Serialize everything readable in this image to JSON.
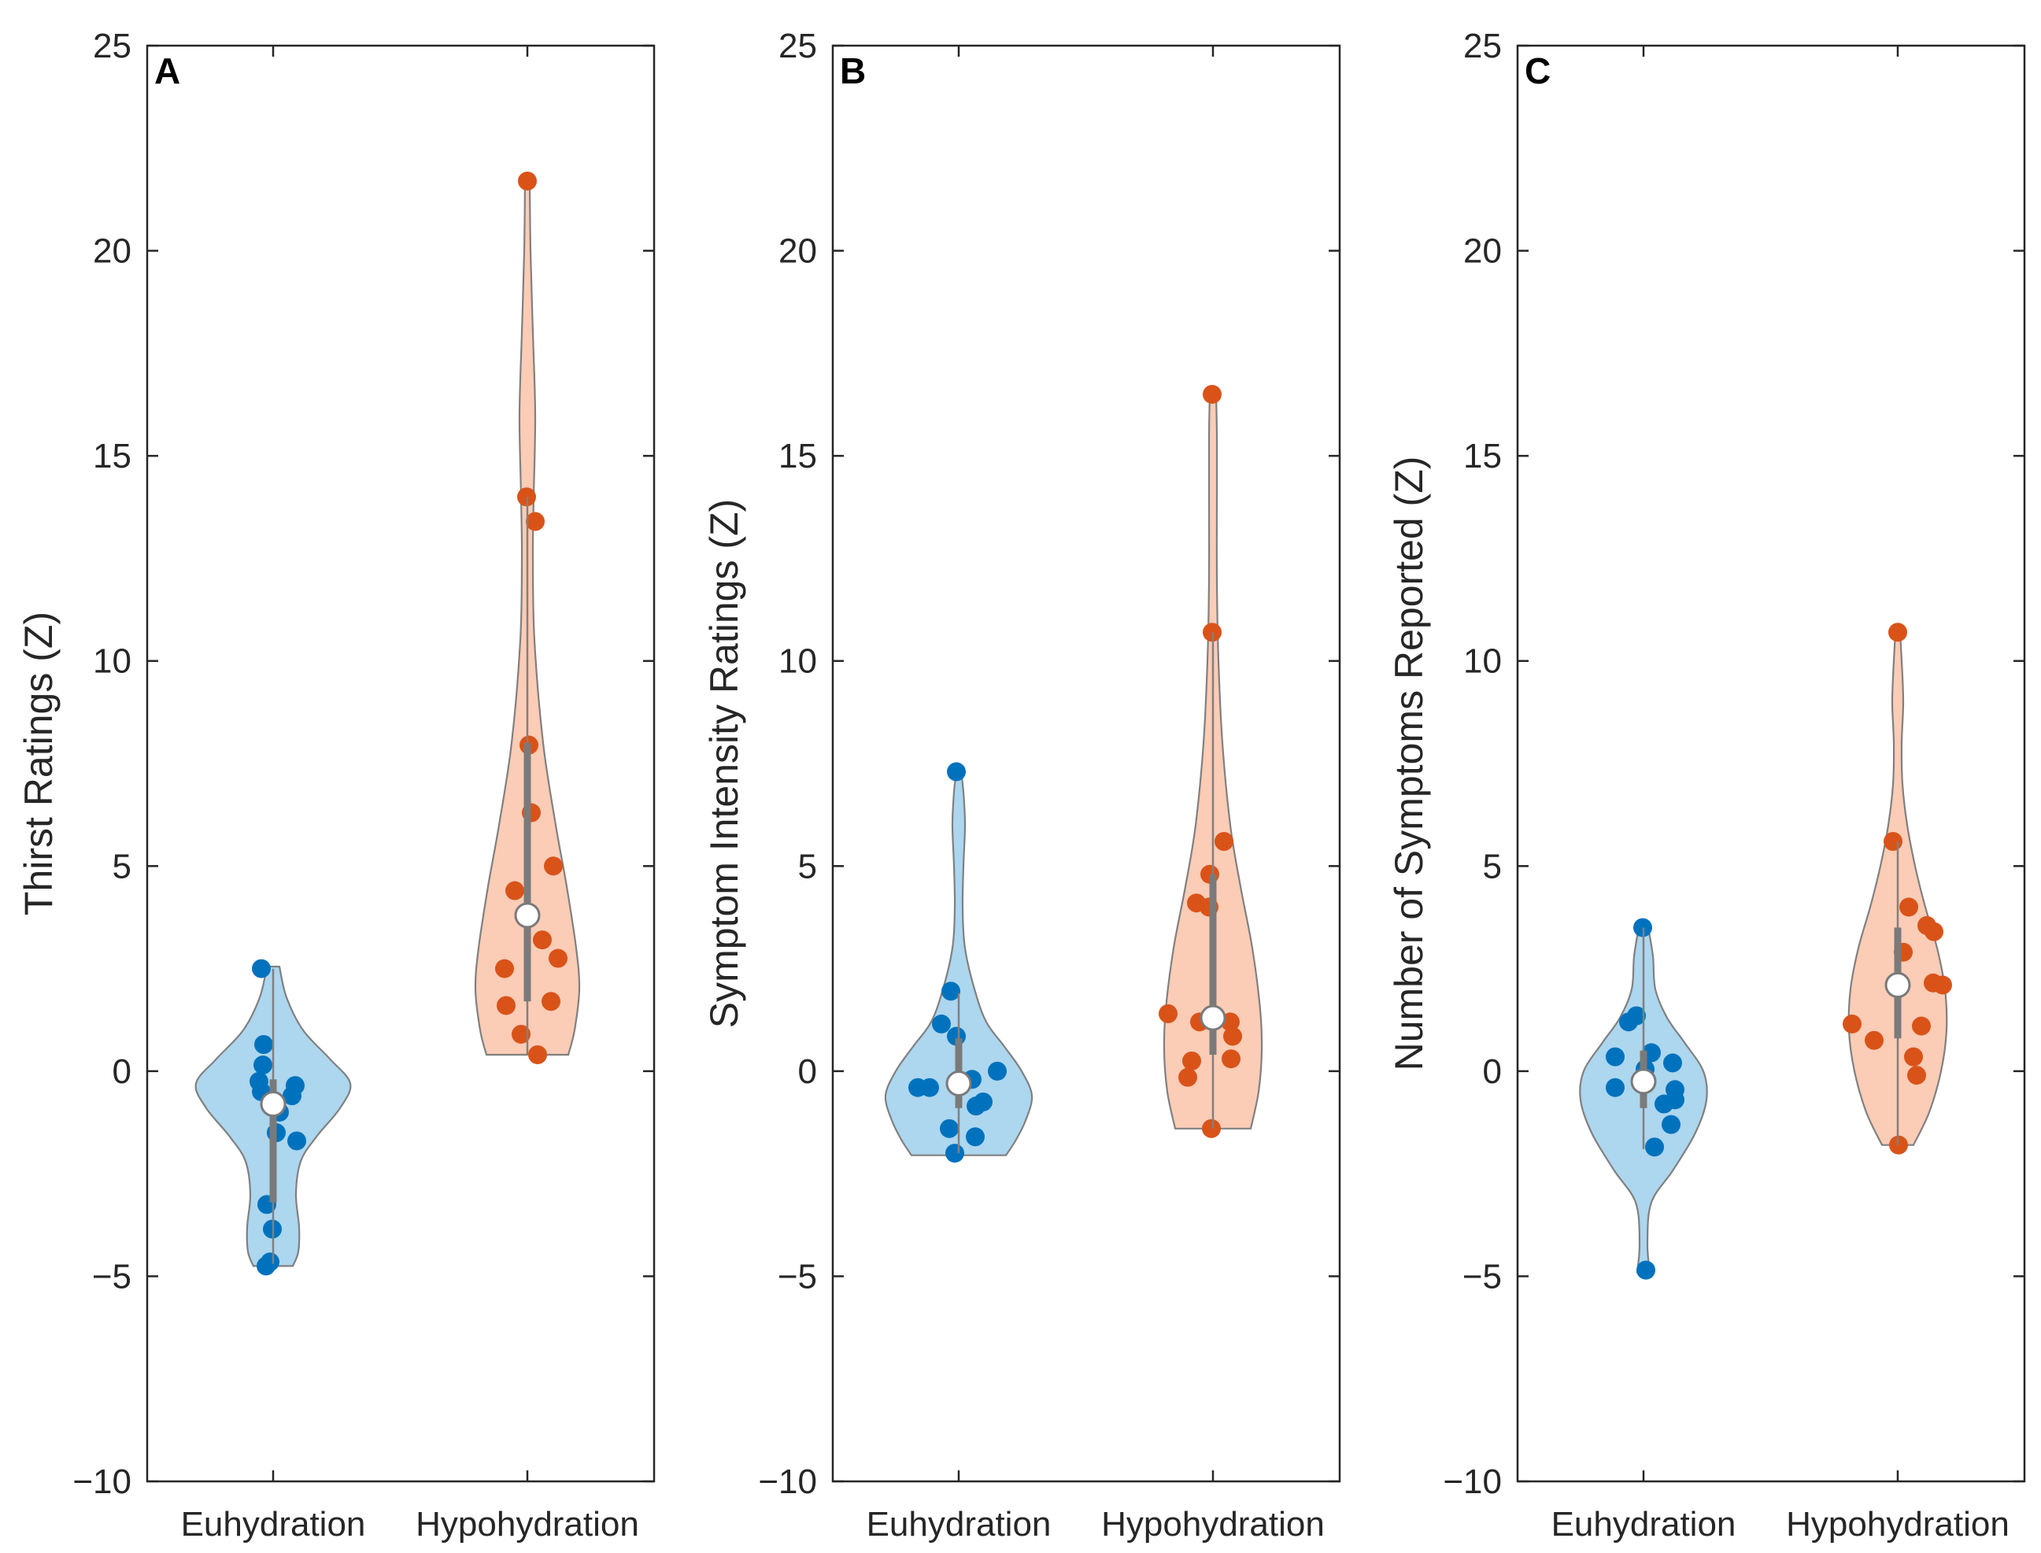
{
  "chart_data": [
    {
      "type": "violin",
      "panel_label": "A",
      "ylabel": "Thirst Ratings (Z)",
      "xlabel": "",
      "categories": [
        "Euhydration",
        "Hypohydration"
      ],
      "ylim": [
        -10,
        25
      ],
      "yticks": [
        -10,
        -5,
        0,
        5,
        10,
        15,
        20,
        25
      ],
      "ytick_labels": [
        "−10",
        "−5",
        "0",
        "5",
        "10",
        "15",
        "20",
        "25"
      ],
      "series": [
        {
          "name": "Euhydration",
          "color": "#0072BD",
          "fill": "#A9D4EE",
          "median": -0.8,
          "q1": -3.2,
          "q3": -0.2,
          "whisker": [
            -4.7,
            2.5
          ],
          "violin_range": [
            -4.75,
            2.55
          ],
          "violin_profile": [
            [
              -4.75,
              0.25
            ],
            [
              -4.4,
              0.32
            ],
            [
              -3.8,
              0.33
            ],
            [
              -3.0,
              0.29
            ],
            [
              -2.2,
              0.35
            ],
            [
              -1.6,
              0.55
            ],
            [
              -0.9,
              0.85
            ],
            [
              -0.3,
              0.98
            ],
            [
              0.3,
              0.72
            ],
            [
              1.0,
              0.38
            ],
            [
              1.8,
              0.17
            ],
            [
              2.55,
              0.08
            ]
          ],
          "points": [
            [
              -0.15,
              2.5
            ],
            [
              -0.12,
              0.65
            ],
            [
              -0.13,
              0.15
            ],
            [
              -0.15,
              -0.5
            ],
            [
              -0.18,
              -0.25
            ],
            [
              0.08,
              -1.0
            ],
            [
              0.04,
              -1.5
            ],
            [
              0.28,
              -0.35
            ],
            [
              0.24,
              -0.6
            ],
            [
              0.3,
              -1.7
            ],
            [
              -0.08,
              -3.25
            ],
            [
              -0.01,
              -3.85
            ],
            [
              -0.04,
              -4.65
            ],
            [
              -0.09,
              -4.75
            ]
          ]
        },
        {
          "name": "Hypohydration",
          "color": "#D95319",
          "fill": "#FBC9B2",
          "median": 3.8,
          "q1": 1.7,
          "q3": 8.0,
          "whisker": [
            0.4,
            14.0
          ],
          "violin_range": [
            0.4,
            21.7
          ],
          "violin_profile": [
            [
              0.4,
              0.52
            ],
            [
              1.0,
              0.6
            ],
            [
              2.0,
              0.66
            ],
            [
              3.0,
              0.62
            ],
            [
              4.5,
              0.5
            ],
            [
              6.0,
              0.36
            ],
            [
              8.0,
              0.2
            ],
            [
              10.5,
              0.09
            ],
            [
              12.5,
              0.07
            ],
            [
              14.0,
              0.08
            ],
            [
              16.0,
              0.1
            ],
            [
              18.0,
              0.07
            ],
            [
              20.0,
              0.04
            ],
            [
              21.7,
              0.03
            ]
          ],
          "points": [
            [
              0.0,
              21.7
            ],
            [
              -0.01,
              14.0
            ],
            [
              0.1,
              13.4
            ],
            [
              0.02,
              7.95
            ],
            [
              0.05,
              6.3
            ],
            [
              0.33,
              5.0
            ],
            [
              -0.16,
              4.4
            ],
            [
              0.19,
              3.2
            ],
            [
              -0.29,
              2.5
            ],
            [
              0.39,
              2.75
            ],
            [
              0.3,
              1.7
            ],
            [
              -0.27,
              1.6
            ],
            [
              -0.08,
              0.9
            ],
            [
              0.13,
              0.4
            ]
          ]
        }
      ]
    },
    {
      "type": "violin",
      "panel_label": "B",
      "ylabel": "Symptom Intensity Ratings (Z)",
      "xlabel": "",
      "categories": [
        "Euhydration",
        "Hypohydration"
      ],
      "ylim": [
        -10,
        25
      ],
      "yticks": [
        -10,
        -5,
        0,
        5,
        10,
        15,
        20,
        25
      ],
      "ytick_labels": [
        "−10",
        "−5",
        "0",
        "5",
        "10",
        "15",
        "20",
        "25"
      ],
      "series": [
        {
          "name": "Euhydration",
          "color": "#0072BD",
          "fill": "#A9D4EE",
          "median": -0.3,
          "q1": -0.9,
          "q3": 0.8,
          "whisker": [
            -2.0,
            1.9
          ],
          "violin_range": [
            -2.05,
            7.3
          ],
          "violin_profile": [
            [
              -2.05,
              0.6
            ],
            [
              -1.7,
              0.72
            ],
            [
              -1.2,
              0.85
            ],
            [
              -0.6,
              0.93
            ],
            [
              0.0,
              0.8
            ],
            [
              0.6,
              0.58
            ],
            [
              1.2,
              0.35
            ],
            [
              2.0,
              0.2
            ],
            [
              3.0,
              0.08
            ],
            [
              4.0,
              0.05
            ],
            [
              5.0,
              0.06
            ],
            [
              6.0,
              0.08
            ],
            [
              6.8,
              0.06
            ],
            [
              7.3,
              0.03
            ]
          ],
          "points": [
            [
              -0.03,
              7.3
            ],
            [
              -0.1,
              1.95
            ],
            [
              -0.22,
              1.15
            ],
            [
              -0.03,
              0.85
            ],
            [
              0.49,
              0.0
            ],
            [
              -0.52,
              -0.4
            ],
            [
              -0.37,
              -0.4
            ],
            [
              0.17,
              -0.2
            ],
            [
              0.31,
              -0.75
            ],
            [
              0.22,
              -0.85
            ],
            [
              -0.12,
              -1.4
            ],
            [
              0.21,
              -1.6
            ],
            [
              -0.05,
              -2.0
            ]
          ]
        },
        {
          "name": "Hypohydration",
          "color": "#D95319",
          "fill": "#FBC9B2",
          "median": 1.3,
          "q1": 0.4,
          "q3": 4.8,
          "whisker": [
            -1.4,
            10.7
          ],
          "violin_range": [
            -1.4,
            16.5
          ],
          "violin_profile": [
            [
              -1.4,
              0.48
            ],
            [
              -0.5,
              0.58
            ],
            [
              0.5,
              0.62
            ],
            [
              1.5,
              0.6
            ],
            [
              3.0,
              0.5
            ],
            [
              4.5,
              0.35
            ],
            [
              6.0,
              0.22
            ],
            [
              8.0,
              0.12
            ],
            [
              10.0,
              0.07
            ],
            [
              12.0,
              0.05
            ],
            [
              14.0,
              0.05
            ],
            [
              15.5,
              0.05
            ],
            [
              16.5,
              0.04
            ]
          ],
          "points": [
            [
              -0.01,
              16.5
            ],
            [
              -0.01,
              10.7
            ],
            [
              0.14,
              5.6
            ],
            [
              -0.04,
              4.8
            ],
            [
              -0.21,
              4.1
            ],
            [
              -0.05,
              4.0
            ],
            [
              -0.57,
              1.4
            ],
            [
              -0.17,
              1.2
            ],
            [
              0.22,
              1.2
            ],
            [
              0.25,
              0.85
            ],
            [
              -0.27,
              0.25
            ],
            [
              0.23,
              0.3
            ],
            [
              -0.32,
              -0.15
            ],
            [
              -0.02,
              -1.4
            ]
          ]
        }
      ]
    },
    {
      "type": "violin",
      "panel_label": "C",
      "ylabel": "Number of Symptoms Reported (Z)",
      "xlabel": "",
      "categories": [
        "Euhydration",
        "Hypohydration"
      ],
      "ylim": [
        -10,
        25
      ],
      "yticks": [
        -10,
        -5,
        0,
        5,
        10,
        15,
        20,
        25
      ],
      "ytick_labels": [
        "−10",
        "−5",
        "0",
        "5",
        "10",
        "15",
        "20",
        "25"
      ],
      "series": [
        {
          "name": "Euhydration",
          "color": "#0072BD",
          "fill": "#A9D4EE",
          "median": -0.25,
          "q1": -0.9,
          "q3": 0.5,
          "whisker": [
            -1.9,
            3.5
          ],
          "violin_range": [
            -4.9,
            3.5
          ],
          "violin_profile": [
            [
              -4.9,
              0.08
            ],
            [
              -4.2,
              0.05
            ],
            [
              -3.2,
              0.1
            ],
            [
              -2.4,
              0.38
            ],
            [
              -1.5,
              0.66
            ],
            [
              -0.7,
              0.8
            ],
            [
              0.0,
              0.76
            ],
            [
              0.7,
              0.52
            ],
            [
              1.3,
              0.3
            ],
            [
              2.0,
              0.15
            ],
            [
              2.8,
              0.12
            ],
            [
              3.5,
              0.06
            ]
          ],
          "points": [
            [
              -0.01,
              3.5
            ],
            [
              -0.19,
              1.2
            ],
            [
              -0.09,
              1.35
            ],
            [
              -0.36,
              0.35
            ],
            [
              0.1,
              0.45
            ],
            [
              0.37,
              0.2
            ],
            [
              0.02,
              0.05
            ],
            [
              -0.36,
              -0.4
            ],
            [
              0.4,
              -0.45
            ],
            [
              0.26,
              -0.8
            ],
            [
              0.4,
              -0.7
            ],
            [
              0.35,
              -1.3
            ],
            [
              0.14,
              -1.85
            ],
            [
              0.03,
              -4.85
            ]
          ]
        },
        {
          "name": "Hypohydration",
          "color": "#D95319",
          "fill": "#FBC9B2",
          "median": 2.1,
          "q1": 0.8,
          "q3": 3.5,
          "whisker": [
            -1.8,
            5.6
          ],
          "violin_range": [
            -1.8,
            10.7
          ],
          "violin_profile": [
            [
              -1.8,
              0.2
            ],
            [
              -1.0,
              0.4
            ],
            [
              0.0,
              0.55
            ],
            [
              1.0,
              0.62
            ],
            [
              2.0,
              0.6
            ],
            [
              3.0,
              0.5
            ],
            [
              4.0,
              0.35
            ],
            [
              5.0,
              0.22
            ],
            [
              6.0,
              0.12
            ],
            [
              7.0,
              0.06
            ],
            [
              8.0,
              0.05
            ],
            [
              9.0,
              0.07
            ],
            [
              10.0,
              0.05
            ],
            [
              10.7,
              0.03
            ]
          ],
          "points": [
            [
              0.0,
              10.7
            ],
            [
              -0.06,
              5.6
            ],
            [
              0.14,
              4.0
            ],
            [
              0.37,
              3.55
            ],
            [
              0.46,
              3.4
            ],
            [
              0.07,
              2.9
            ],
            [
              0.45,
              2.15
            ],
            [
              0.57,
              2.1
            ],
            [
              -0.58,
              1.15
            ],
            [
              -0.3,
              0.75
            ],
            [
              0.3,
              1.1
            ],
            [
              0.2,
              0.35
            ],
            [
              0.24,
              -0.1
            ],
            [
              0.01,
              -1.8
            ]
          ]
        }
      ]
    }
  ]
}
